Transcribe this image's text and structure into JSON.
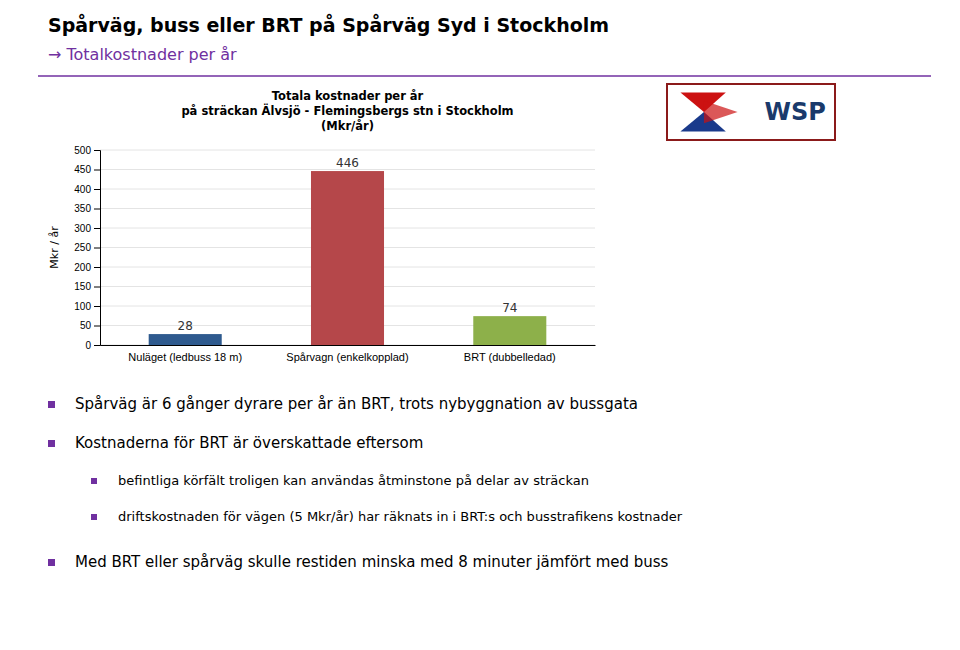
{
  "title": "Spårväg, buss eller BRT på Spårväg Syd i Stockholm",
  "subtitle": "→ Totalkostnader per år",
  "logo": "WSP",
  "bullets": [
    {
      "text": "Spårväg är 6 gånger dyrare per år än BRT, trots nybyggnation av bussgata"
    },
    {
      "text": "Kostnaderna för BRT är överskattade eftersom",
      "sub_bullets": [
        "befintliga körfält troligen kan användas åtminstone på delar av sträckan",
        "driftskostnaden för vägen (5 Mkr/år) har räknats in i BRT:s och busstrafikens kostnader"
      ]
    },
    {
      "text": "Med BRT eller spårväg skulle restiden minska med 8 minuter jämfört med buss"
    }
  ],
  "chart_data": {
    "type": "bar",
    "title": [
      "Totala kostnader per år",
      "på sträckan Älvsjö - Flemingsbergs stn i Stockholm",
      "(Mkr/år)"
    ],
    "ylabel": "Mkr / år",
    "categories": [
      "Nuläget (ledbuss 18 m)",
      "Spårvagn (enkelkopplad)",
      "BRT (dubbelledad)"
    ],
    "values": [
      28,
      446,
      74
    ],
    "colors": [
      "#2E5A8E",
      "#B5474A",
      "#8DB04A"
    ],
    "ylim": [
      0,
      500
    ],
    "yticks": [
      0,
      50,
      100,
      150,
      200,
      250,
      300,
      350,
      400,
      450,
      500
    ],
    "grid": true,
    "data_labels": true
  }
}
